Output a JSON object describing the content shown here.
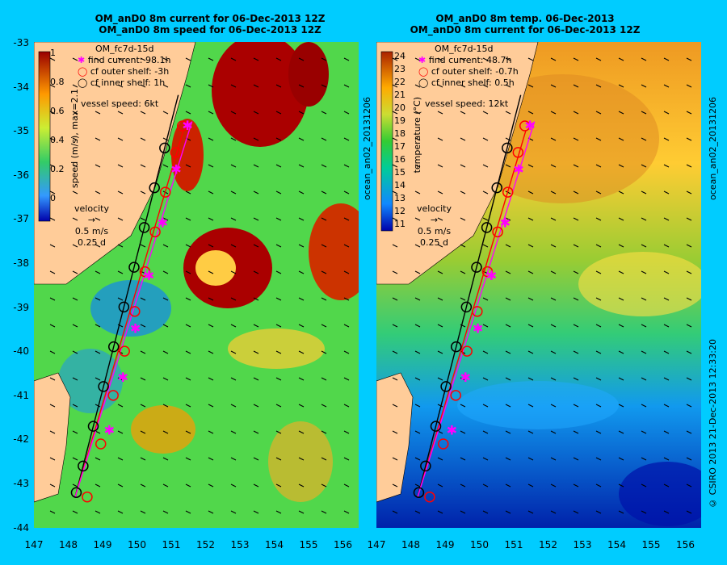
{
  "left": {
    "title1": "OM_anD0 8m current for 06-Dec-2013 12Z",
    "title2": "OM_anD0 8m speed for 06-Dec-2013 12Z",
    "run": "OM_fc7d-15d",
    "legend": [
      "find current: 98.1h",
      "cf outer shelf: -3h",
      "cf inner shelf: 1h"
    ],
    "vessel": "vessel speed: 6kt",
    "colorbar_label": "speed (m/s), max=2.1",
    "colorbar_ticks": [
      "1",
      "0.8",
      "0.6",
      "0.4",
      "0.2",
      "0"
    ],
    "velocity_label": "velocity",
    "velocity_scale": "0.5 m/s",
    "velocity_time": "0.25 d",
    "side_label": "ocean_an02_20131206"
  },
  "right": {
    "title1": "OM_anD0 8m temp. 06-Dec-2013",
    "title2": "OM_anD0 8m current for 06-Dec-2013 12Z",
    "run": "OM_fc7d-15d",
    "legend": [
      "find current: 48.7h",
      "cf outer shelf: -0.7h",
      "cf inner shelf: 0.5h"
    ],
    "vessel": "vessel speed: 12kt",
    "colorbar_label": "temperature (°C)",
    "colorbar_ticks": [
      "24",
      "23",
      "22",
      "21",
      "20",
      "19",
      "18",
      "17",
      "16",
      "15",
      "14",
      "13",
      "12",
      "11"
    ],
    "velocity_label": "velocity",
    "velocity_scale": "0.5 m/s",
    "velocity_time": "0.25 d",
    "side_label": "ocean_an02_20131206"
  },
  "credit": "© CSIRO 2013   21-Dec-2013 12:33:20",
  "y_ticks": [
    "-33",
    "-34",
    "-35",
    "-36",
    "-37",
    "-38",
    "-39",
    "-40",
    "-41",
    "-42",
    "-43",
    "-44"
  ],
  "x_ticks": [
    "147",
    "148",
    "149",
    "150",
    "151",
    "152",
    "153",
    "154",
    "155",
    "156"
  ],
  "colors": {
    "land": "#ffcc99",
    "frame": "#00ccff",
    "find": "#ff00ff",
    "outer": "#ff0000",
    "inner": "#000000"
  },
  "routes": {
    "start": [
      148.2,
      -43.3
    ],
    "end": [
      151.2,
      -34.2
    ],
    "inner_markers_lat": [
      -43.2,
      -42.6,
      -41.7,
      -40.8,
      -39.9,
      -39.0,
      -38.1,
      -37.2,
      -36.3,
      -35.4
    ],
    "outer_markers_lat": [
      -43.3,
      -42.1,
      -41.0,
      -40.0,
      -39.1,
      -38.2,
      -37.3,
      -36.4,
      -35.5,
      -34.9
    ],
    "find_markers_lat": [
      -41.8,
      -40.6,
      -39.5,
      -38.3,
      -37.1,
      -35.9,
      -34.9
    ]
  }
}
